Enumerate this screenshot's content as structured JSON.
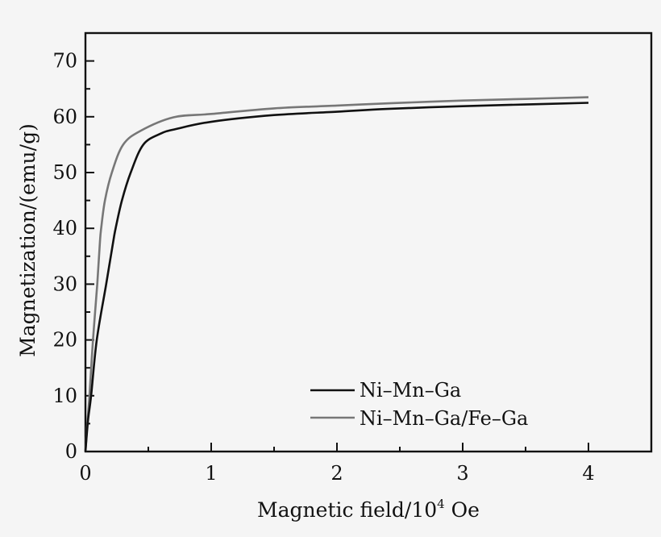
{
  "chart_data": {
    "type": "line",
    "title": "",
    "xlabel": "Magnetic field/10^4 Oe",
    "xlabel_parts": {
      "main": "Magnetic field/10",
      "sup": "4",
      "unit": " Oe"
    },
    "ylabel": "Magnetization/(emu/g)",
    "xlim": [
      0,
      4.5
    ],
    "ylim": [
      0,
      75
    ],
    "x_ticks": [
      0,
      1,
      2,
      3,
      4
    ],
    "x_tick_labels": [
      "0",
      "1",
      "2",
      "3",
      "4"
    ],
    "x_minor_ticks": [
      0.5,
      1.5,
      2.5,
      3.5
    ],
    "y_ticks": [
      0,
      10,
      20,
      30,
      40,
      50,
      60,
      70
    ],
    "y_tick_labels": [
      "0",
      "10",
      "20",
      "30",
      "40",
      "50",
      "60",
      "70"
    ],
    "y_minor_ticks": [
      5,
      15,
      25,
      35,
      45,
      55,
      65
    ],
    "grid": false,
    "legend_position": "lower right",
    "series": [
      {
        "name": "Ni–Mn–Ga",
        "color": "#111111",
        "x": [
          0,
          0.02,
          0.045,
          0.09,
          0.165,
          0.22,
          0.24,
          0.29,
          0.36,
          0.46,
          0.6,
          0.72,
          1.0,
          1.5,
          2.0,
          2.4,
          3.0,
          3.5,
          4.0
        ],
        "y": [
          0,
          5.5,
          10,
          20,
          30,
          37.5,
          40,
          45,
          50,
          55,
          57,
          57.8,
          59.1,
          60.3,
          60.9,
          61.4,
          61.9,
          62.2,
          62.5
        ]
      },
      {
        "name": "Ni–Mn–Ga/Fe–Ga",
        "color": "#777777",
        "x": [
          0,
          0.015,
          0.032,
          0.06,
          0.094,
          0.115,
          0.125,
          0.155,
          0.21,
          0.3,
          0.44,
          0.7,
          1.0,
          1.5,
          2.0,
          2.4,
          3.0,
          3.5,
          4.0
        ],
        "y": [
          0,
          5,
          10,
          20,
          30,
          37.5,
          40,
          45,
          50,
          55,
          57.5,
          59.9,
          60.5,
          61.5,
          62.0,
          62.4,
          62.9,
          63.2,
          63.5
        ]
      }
    ]
  },
  "legend": {
    "items": [
      {
        "label": "Ni–Mn–Ga",
        "color": "#111111"
      },
      {
        "label": "Ni–Mn–Ga/Fe–Ga",
        "color": "#777777"
      }
    ]
  },
  "colors": {
    "background": "#f5f5f5",
    "axis": "#111111"
  }
}
